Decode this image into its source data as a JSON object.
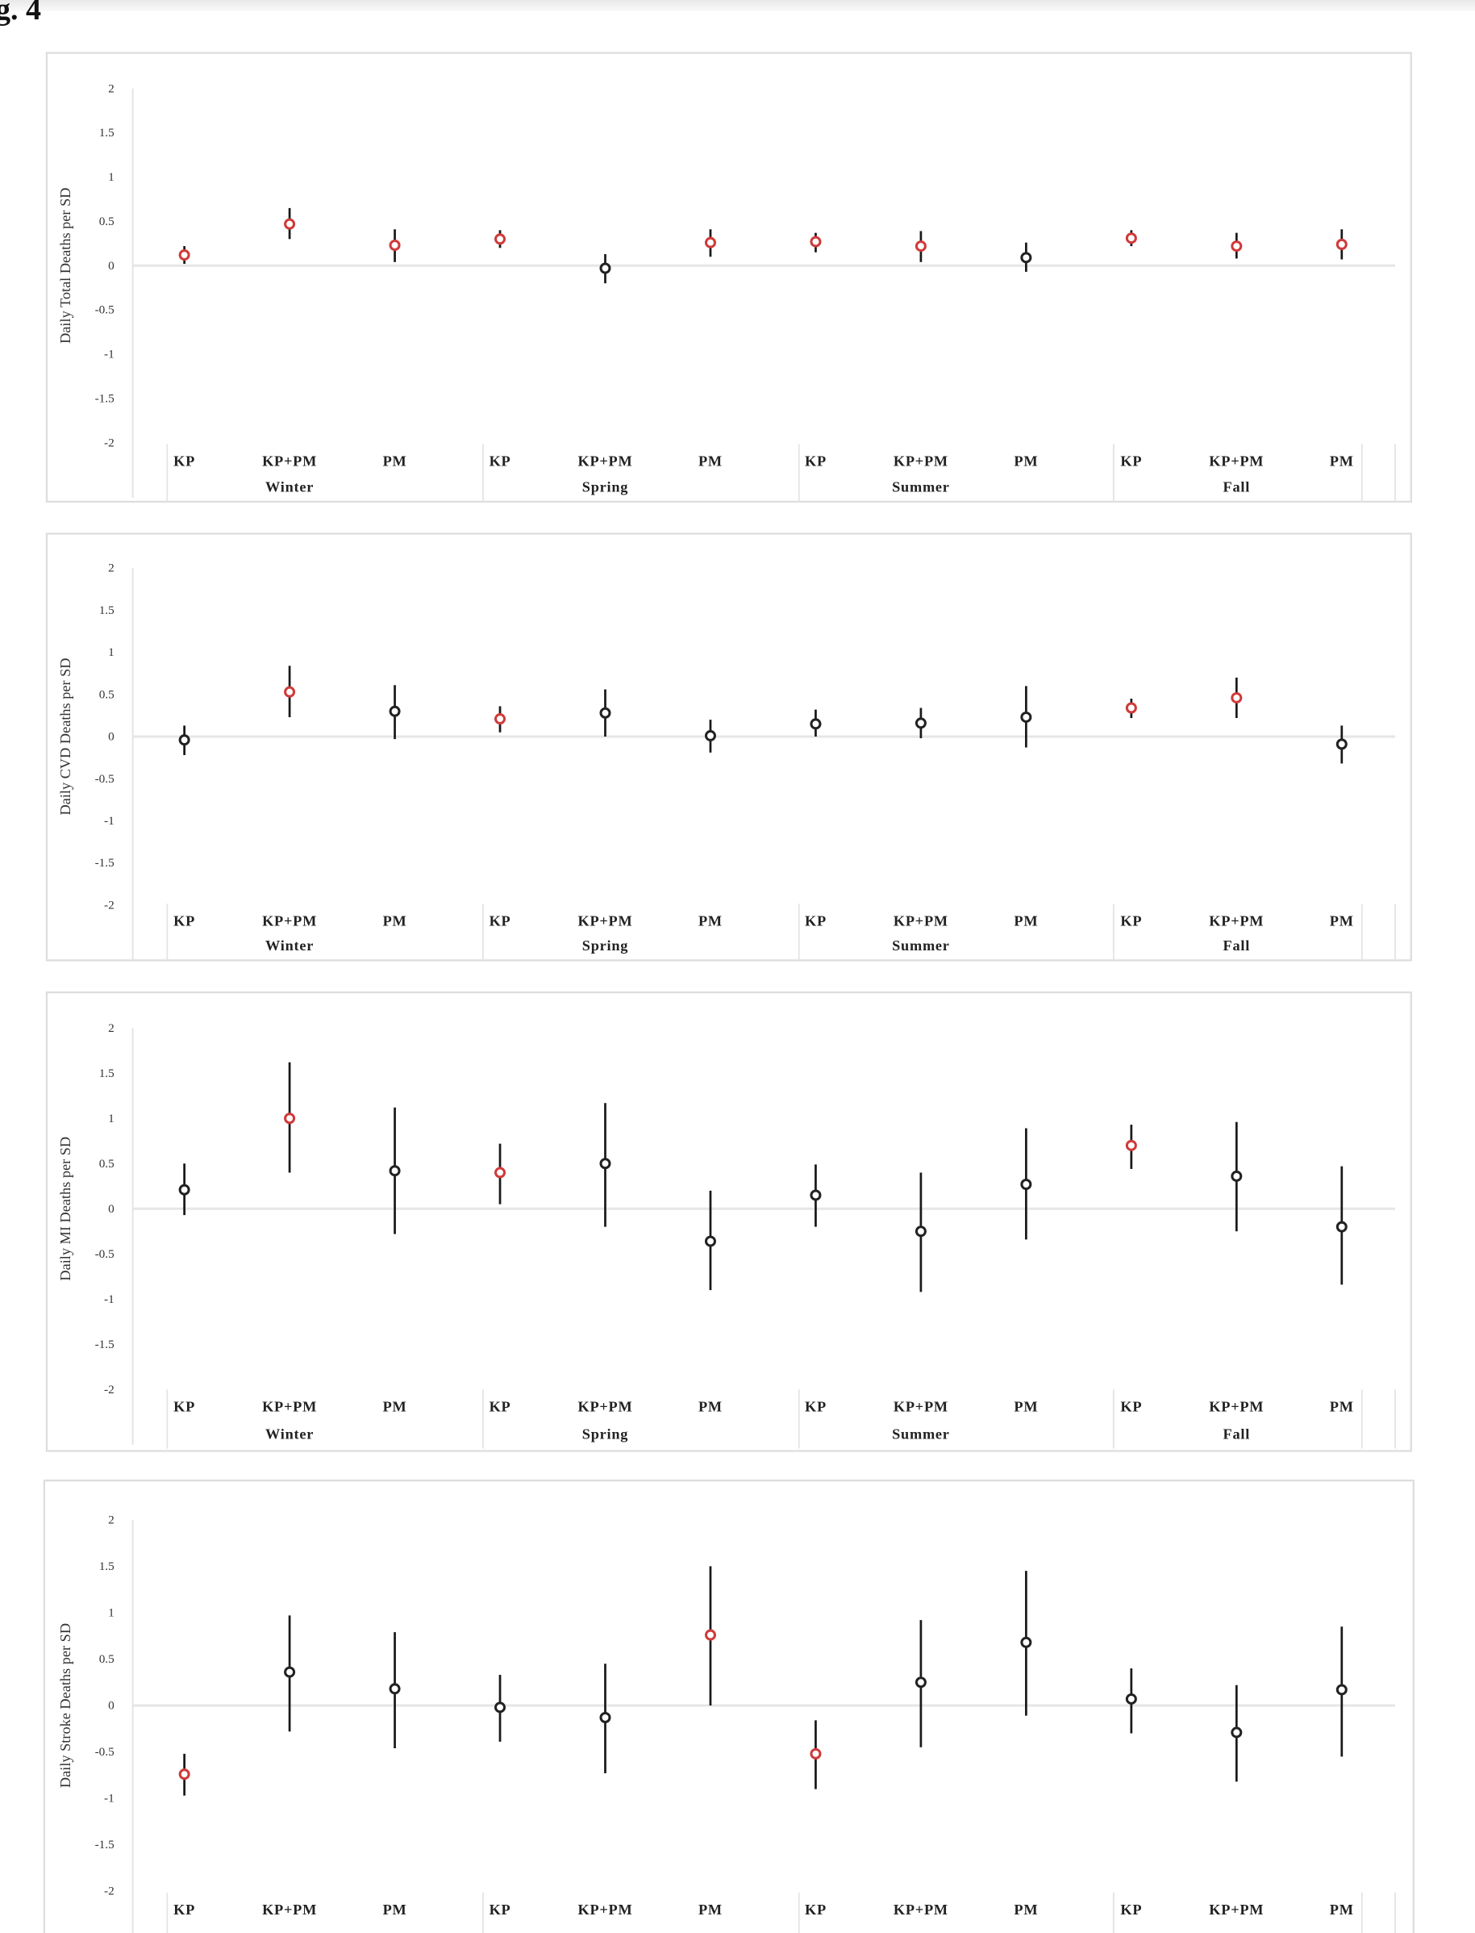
{
  "figure_label": "g. 4",
  "colors": {
    "significant": "#d03a3a",
    "non_significant": "#222222",
    "zero_line": "#e6e6e6",
    "frame": "#dddddd"
  },
  "chart_data": [
    {
      "type": "errorbar",
      "ylabel": "Daily Total Deaths per SD",
      "ylim": [
        -2,
        2
      ],
      "yticks": [
        "2",
        "1.5",
        "1",
        "0.5",
        "0",
        "-0.5",
        "-1",
        "-1.5",
        "-2"
      ],
      "seasons": [
        "Winter",
        "Spring",
        "Summer",
        "Fall"
      ],
      "categories": [
        "KP",
        "KP+PM",
        "PM",
        "KP",
        "KP+PM",
        "PM",
        "KP",
        "KP+PM",
        "PM",
        "KP",
        "KP+PM",
        "PM"
      ],
      "values": [
        0.12,
        0.47,
        0.23,
        0.3,
        -0.03,
        0.26,
        0.27,
        0.22,
        0.09,
        0.31,
        0.22,
        0.24
      ],
      "lower": [
        0.02,
        0.3,
        0.04,
        0.2,
        -0.2,
        0.1,
        0.15,
        0.04,
        -0.07,
        0.22,
        0.08,
        0.07
      ],
      "upper": [
        0.22,
        0.65,
        0.41,
        0.4,
        0.13,
        0.41,
        0.37,
        0.39,
        0.26,
        0.4,
        0.37,
        0.41
      ],
      "significant": [
        true,
        true,
        true,
        true,
        false,
        true,
        true,
        true,
        false,
        true,
        true,
        true
      ]
    },
    {
      "type": "errorbar",
      "ylabel": "Daily CVD Deaths per SD",
      "ylim": [
        -2,
        2
      ],
      "yticks": [
        "2",
        "1.5",
        "1",
        "0.5",
        "0",
        "-0.5",
        "-1",
        "-1.5",
        "-2"
      ],
      "seasons": [
        "Winter",
        "Spring",
        "Summer",
        "Fall"
      ],
      "categories": [
        "KP",
        "KP+PM",
        "PM",
        "KP",
        "KP+PM",
        "PM",
        "KP",
        "KP+PM",
        "PM",
        "KP",
        "KP+PM",
        "PM"
      ],
      "values": [
        -0.04,
        0.53,
        0.3,
        0.21,
        0.28,
        0.01,
        0.15,
        0.16,
        0.23,
        0.34,
        0.46,
        -0.09
      ],
      "lower": [
        -0.22,
        0.23,
        -0.03,
        0.05,
        0.0,
        -0.19,
        0.0,
        -0.02,
        -0.13,
        0.22,
        0.22,
        -0.32
      ],
      "upper": [
        0.13,
        0.84,
        0.61,
        0.36,
        0.56,
        0.2,
        0.32,
        0.34,
        0.6,
        0.45,
        0.7,
        0.13
      ],
      "significant": [
        false,
        true,
        false,
        true,
        false,
        false,
        false,
        false,
        false,
        true,
        true,
        false
      ]
    },
    {
      "type": "errorbar",
      "ylabel": "Daily MI Deaths per SD",
      "ylim": [
        -2,
        2
      ],
      "yticks": [
        "2",
        "1.5",
        "1",
        "0.5",
        "0",
        "-0.5",
        "-1",
        "-1.5",
        "-2"
      ],
      "seasons": [
        "Winter",
        "Spring",
        "Summer",
        "Fall"
      ],
      "categories": [
        "KP",
        "KP+PM",
        "PM",
        "KP",
        "KP+PM",
        "PM",
        "KP",
        "KP+PM",
        "PM",
        "KP",
        "KP+PM",
        "PM"
      ],
      "values": [
        0.21,
        1.0,
        0.42,
        0.4,
        0.5,
        -0.36,
        0.15,
        -0.25,
        0.27,
        0.7,
        0.36,
        -0.2
      ],
      "lower": [
        -0.07,
        0.4,
        -0.28,
        0.05,
        -0.2,
        -0.9,
        -0.2,
        -0.92,
        -0.34,
        0.44,
        -0.25,
        -0.84
      ],
      "upper": [
        0.5,
        1.62,
        1.12,
        0.72,
        1.17,
        0.2,
        0.49,
        0.4,
        0.89,
        0.93,
        0.96,
        0.47
      ],
      "significant": [
        false,
        true,
        false,
        true,
        false,
        false,
        false,
        false,
        false,
        true,
        false,
        false
      ]
    },
    {
      "type": "errorbar",
      "ylabel": "Daily Stroke Deaths per SD",
      "ylim": [
        -2,
        2
      ],
      "yticks": [
        "2",
        "1.5",
        "1",
        "0.5",
        "0",
        "-0.5",
        "-1",
        "-1.5",
        "-2"
      ],
      "categories": [
        "KP",
        "KP+PM",
        "PM",
        "KP",
        "KP+PM",
        "PM",
        "KP",
        "KP+PM",
        "PM",
        "KP",
        "KP+PM",
        "PM"
      ],
      "values": [
        -0.74,
        0.36,
        0.18,
        -0.02,
        -0.13,
        0.76,
        -0.52,
        0.25,
        0.68,
        0.07,
        -0.29,
        0.17
      ],
      "lower": [
        -0.97,
        -0.28,
        -0.46,
        -0.39,
        -0.73,
        0.0,
        -0.9,
        -0.45,
        -0.11,
        -0.3,
        -0.82,
        -0.55
      ],
      "upper": [
        -0.52,
        0.97,
        0.79,
        0.33,
        0.45,
        1.5,
        -0.16,
        0.92,
        1.45,
        0.4,
        0.22,
        0.85
      ],
      "significant": [
        true,
        false,
        false,
        false,
        false,
        true,
        true,
        false,
        false,
        false,
        false,
        false
      ]
    }
  ]
}
